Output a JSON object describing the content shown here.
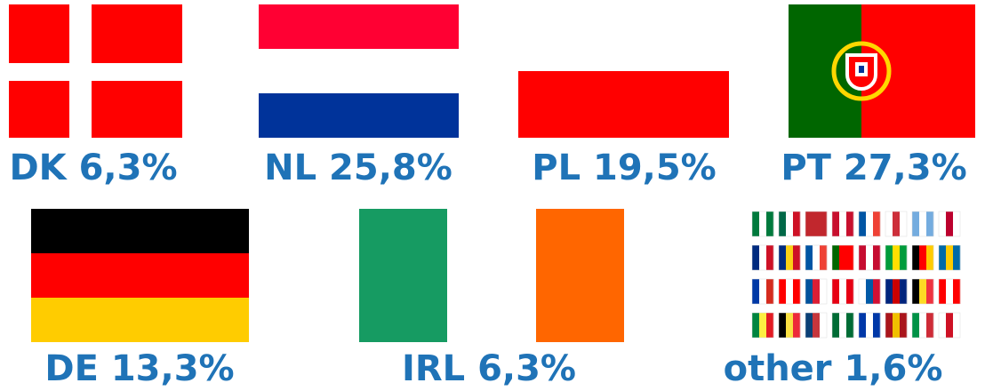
{
  "items": [
    {
      "label": "DK 6,3%"
    },
    {
      "label": "NL 25,8%"
    },
    {
      "label": "PL 19,5%"
    },
    {
      "label": "PT 27,3%"
    },
    {
      "label": "DE 13,3%"
    },
    {
      "label": "IRL 6,3%"
    },
    {
      "label": "other 1,6%"
    }
  ]
}
